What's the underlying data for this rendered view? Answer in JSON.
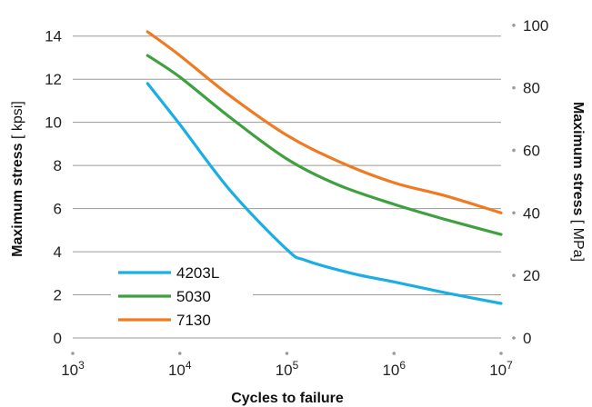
{
  "chart_data": {
    "type": "line",
    "x_scale": "log",
    "x_ticks": [
      1000,
      10000,
      100000,
      1000000,
      10000000
    ],
    "x_tick_labels": [
      {
        "base": "10",
        "exp": "3"
      },
      {
        "base": "10",
        "exp": "4"
      },
      {
        "base": "10",
        "exp": "5"
      },
      {
        "base": "10",
        "exp": "6"
      },
      {
        "base": "10",
        "exp": "7"
      }
    ],
    "xlabel": "Cycles to failure",
    "ylabel": {
      "bold": "Maximum stress",
      "unit": " [ kpsi]"
    },
    "ylabel_right": {
      "bold": "Maximum stress",
      "unit": " [ MPa]"
    },
    "xlim": [
      1000,
      10000000
    ],
    "ylim": [
      0,
      15
    ],
    "y_ticks": [
      0,
      2,
      4,
      6,
      8,
      10,
      12,
      14
    ],
    "y_right_ticks": [
      0,
      20,
      40,
      60,
      80,
      100
    ],
    "y_right_factor": 6.894757,
    "grid": "horizontal",
    "legend_position": "lower-left",
    "series": [
      {
        "name": "4203L",
        "color": "#1aaee5",
        "points": [
          [
            5000,
            11.8
          ],
          [
            10000,
            9.9
          ],
          [
            30000,
            6.8
          ],
          [
            100000,
            4.1
          ],
          [
            150000,
            3.6
          ],
          [
            400000,
            3.0
          ],
          [
            1000000,
            2.6
          ],
          [
            3000000,
            2.1
          ],
          [
            10000000,
            1.6
          ]
        ]
      },
      {
        "name": "5030",
        "color": "#3fa03f",
        "points": [
          [
            5000,
            13.1
          ],
          [
            10000,
            12.1
          ],
          [
            30000,
            10.2
          ],
          [
            100000,
            8.3
          ],
          [
            300000,
            7.1
          ],
          [
            1000000,
            6.2
          ],
          [
            3000000,
            5.5
          ],
          [
            10000000,
            4.8
          ]
        ]
      },
      {
        "name": "7130",
        "color": "#f07a22",
        "points": [
          [
            5000,
            14.2
          ],
          [
            10000,
            13.1
          ],
          [
            30000,
            11.2
          ],
          [
            100000,
            9.4
          ],
          [
            300000,
            8.2
          ],
          [
            1000000,
            7.2
          ],
          [
            3000000,
            6.6
          ],
          [
            10000000,
            5.8
          ]
        ]
      }
    ]
  }
}
